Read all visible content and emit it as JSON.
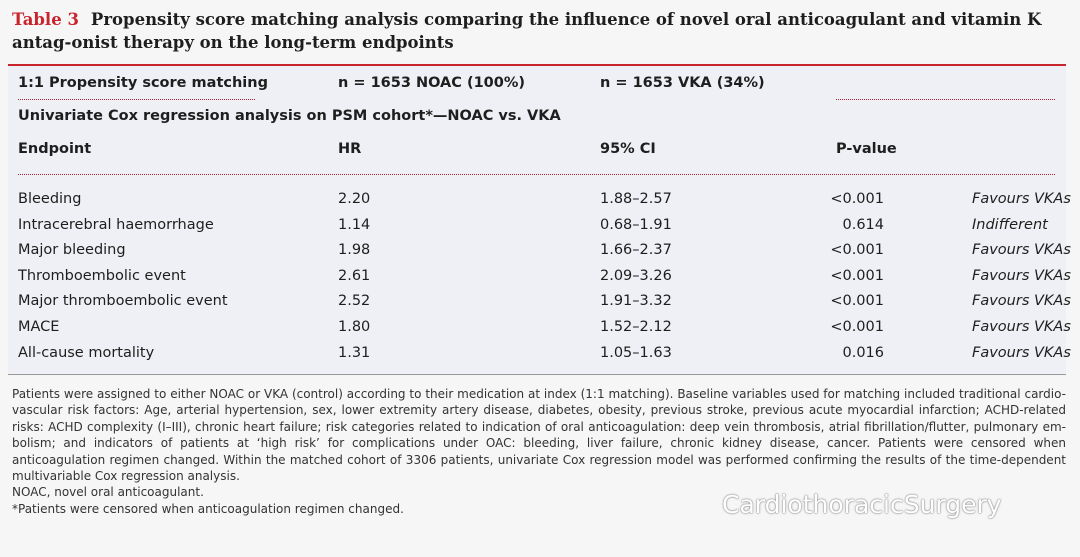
{
  "title": {
    "label": "Table 3",
    "text": "Propensity score matching analysis comparing the influence of novel oral anticoagulant and vitamin K antag-onist therapy on the long-term endpoints"
  },
  "table": {
    "matching_row": [
      "1:1 Propensity score matching",
      "n = 1653 NOAC (100%)",
      "n = 1653 VKA (34%)"
    ],
    "subheader": "Univariate Cox regression analysis on PSM cohort*—NOAC vs. VKA",
    "header": [
      "Endpoint",
      "HR",
      "95% CI",
      "P-value"
    ],
    "rows": [
      [
        "Bleeding",
        "2.20",
        "1.88–2.57",
        "<0.001",
        "Favours VKAs"
      ],
      [
        "Intracerebral haemorrhage",
        "1.14",
        "0.68–1.91",
        "0.614",
        "Indifferent"
      ],
      [
        "Major bleeding",
        "1.98",
        "1.66–2.37",
        "<0.001",
        "Favours VKAs"
      ],
      [
        "Thromboembolic event",
        "2.61",
        "2.09–3.26",
        "<0.001",
        "Favours VKAs"
      ],
      [
        "Major thromboembolic event",
        "2.52",
        "1.91–3.32",
        "<0.001",
        "Favours VKAs"
      ],
      [
        "MACE",
        "1.80",
        "1.52–2.12",
        "<0.001",
        "Favours VKAs"
      ],
      [
        "All-cause mortality",
        "1.31",
        "1.05–1.63",
        "0.016",
        "Favours VKAs"
      ]
    ]
  },
  "footnotes": [
    "Patients were assigned to either NOAC or VKA (control) according to their medication at index (1:1 matching). Baseline variables used for matching included traditional cardio-vascular risk factors: Age, arterial hypertension, sex, lower extremity artery disease, diabetes, obesity, previous stroke, previous acute myocardial infarction; ACHD-related risks: ACHD complexity (I–III), chronic heart failure; risk categories related to indication of oral anticoagulation: deep vein thrombosis, atrial fibrillation/flutter, pulmonary em-bolism; and indicators of patients at ‘high risk’ for complications under OAC: bleeding, liver failure, chronic kidney disease, cancer. Patients were censored when anticoagulation regimen changed. Within the matched cohort of 3306 patients, univariate Cox regression model was performed confirming the results of the time-dependent multivariable Cox regression analysis.",
    "NOAC, novel oral anticoagulant.",
    "*Patients were censored when anticoagulation regimen changed."
  ],
  "watermark": "CardiothoracicSurgery"
}
